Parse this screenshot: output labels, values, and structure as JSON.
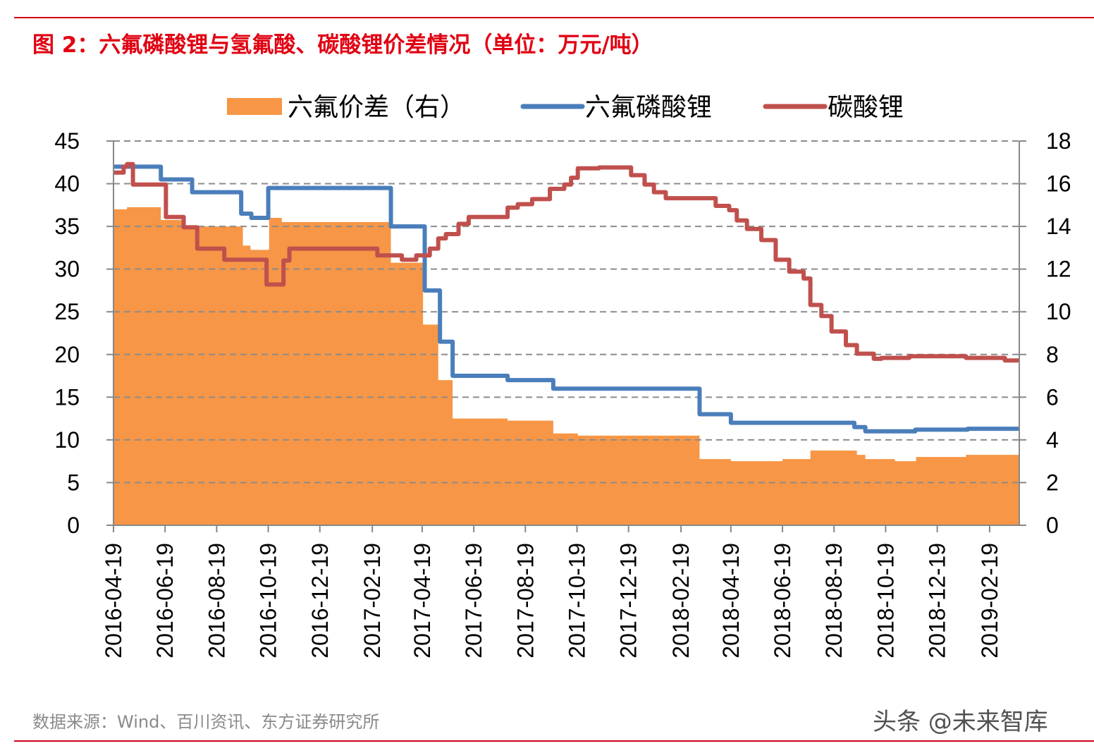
{
  "title": "图 2：六氟磷酸锂与氢氟酸、碳酸锂价差情况（单位：万元/吨）",
  "source": "数据来源：Wind、百川资讯、东方证券研究所",
  "watermark": "头条 @未来智库",
  "chart_data": {
    "type": "area+line",
    "title": "",
    "xlabel": "",
    "ylabel": "",
    "x_type": "date",
    "xlim": [
      "2016-04-19",
      "2019-03-26"
    ],
    "x_ticks": [
      "2016-04-19",
      "2016-06-19",
      "2016-08-19",
      "2016-10-19",
      "2016-12-19",
      "2017-02-19",
      "2017-04-19",
      "2017-06-19",
      "2017-08-19",
      "2017-10-19",
      "2017-12-19",
      "2018-02-19",
      "2018-04-19",
      "2018-06-19",
      "2018-08-19",
      "2018-10-19",
      "2018-12-19",
      "2019-02-19"
    ],
    "y_left": {
      "lim": [
        0,
        45
      ],
      "ticks": [
        "0",
        "5",
        "10",
        "15",
        "20",
        "25",
        "30",
        "35",
        "40",
        "45"
      ]
    },
    "y_right": {
      "lim": [
        0,
        18
      ],
      "ticks": [
        "0",
        "2",
        "4",
        "6",
        "8",
        "10",
        "12",
        "14",
        "16",
        "18"
      ]
    },
    "grid": "horizontal dashed",
    "legend_position": "top",
    "series": [
      {
        "name": "六氟价差（右）",
        "type": "area",
        "axis": "right",
        "color": "#f79646",
        "points": [
          [
            "2016-04-19",
            14.8
          ],
          [
            "2016-05-05",
            14.9
          ],
          [
            "2016-06-14",
            14.3
          ],
          [
            "2016-07-12",
            14.0
          ],
          [
            "2016-09-19",
            13.1
          ],
          [
            "2016-09-28",
            12.9
          ],
          [
            "2016-10-20",
            14.4
          ],
          [
            "2016-11-04",
            14.2
          ],
          [
            "2017-03-13",
            12.3
          ],
          [
            "2017-04-20",
            9.4
          ],
          [
            "2017-05-08",
            6.8
          ],
          [
            "2017-05-25",
            5.0
          ],
          [
            "2017-07-29",
            4.9
          ],
          [
            "2017-09-21",
            4.3
          ],
          [
            "2017-10-20",
            4.2
          ],
          [
            "2018-03-13",
            3.1
          ],
          [
            "2018-04-19",
            3.0
          ],
          [
            "2018-06-19",
            3.1
          ],
          [
            "2018-07-22",
            3.5
          ],
          [
            "2018-09-15",
            3.3
          ],
          [
            "2018-09-25",
            3.1
          ],
          [
            "2018-10-30",
            3.0
          ],
          [
            "2018-11-24",
            3.2
          ],
          [
            "2019-01-22",
            3.3
          ]
        ]
      },
      {
        "name": "六氟磷酸锂",
        "type": "line",
        "axis": "left",
        "color": "#4a7ebb",
        "points": [
          [
            "2016-04-19",
            42
          ],
          [
            "2016-06-14",
            40.5
          ],
          [
            "2016-07-21",
            39
          ],
          [
            "2016-09-17",
            36.5
          ],
          [
            "2016-09-29",
            36
          ],
          [
            "2016-10-19",
            39.5
          ],
          [
            "2017-03-13",
            35
          ],
          [
            "2017-04-22",
            27.5
          ],
          [
            "2017-05-10",
            21.5
          ],
          [
            "2017-05-25",
            17.5
          ],
          [
            "2017-07-29",
            17
          ],
          [
            "2017-09-21",
            16
          ],
          [
            "2018-03-13",
            13
          ],
          [
            "2018-04-19",
            12
          ],
          [
            "2018-09-12",
            11.5
          ],
          [
            "2018-09-25",
            11
          ],
          [
            "2018-11-23",
            11.2
          ],
          [
            "2019-01-24",
            11.3
          ]
        ]
      },
      {
        "name": "碳酸锂",
        "type": "line",
        "axis": "left",
        "color": "#c0504d",
        "points": [
          [
            "2016-04-19",
            41.3
          ],
          [
            "2016-05-01",
            42
          ],
          [
            "2016-05-05",
            42.3
          ],
          [
            "2016-05-12",
            39.9
          ],
          [
            "2016-06-20",
            36.1
          ],
          [
            "2016-07-11",
            34.9
          ],
          [
            "2016-07-27",
            32.4
          ],
          [
            "2016-08-28",
            31.1
          ],
          [
            "2016-10-17",
            28.2
          ],
          [
            "2016-11-06",
            31
          ],
          [
            "2016-11-13",
            32.4
          ],
          [
            "2017-02-25",
            31.6
          ],
          [
            "2017-03-26",
            31.1
          ],
          [
            "2017-04-12",
            31.6
          ],
          [
            "2017-04-28",
            32.4
          ],
          [
            "2017-05-08",
            33.6
          ],
          [
            "2017-05-17",
            34.1
          ],
          [
            "2017-06-01",
            35.3
          ],
          [
            "2017-06-13",
            36.1
          ],
          [
            "2017-07-29",
            37.2
          ],
          [
            "2017-08-10",
            37.6
          ],
          [
            "2017-08-27",
            38.2
          ],
          [
            "2017-09-17",
            39.4
          ],
          [
            "2017-10-04",
            39.9
          ],
          [
            "2017-10-12",
            40.7
          ],
          [
            "2017-10-20",
            41.8
          ],
          [
            "2017-11-14",
            41.9
          ],
          [
            "2017-12-22",
            41.0
          ],
          [
            "2018-01-07",
            39.9
          ],
          [
            "2018-01-18",
            39.0
          ],
          [
            "2018-02-01",
            38.3
          ],
          [
            "2018-04-01",
            37.4
          ],
          [
            "2018-04-17",
            36.9
          ],
          [
            "2018-04-26",
            35.7
          ],
          [
            "2018-05-08",
            34.7
          ],
          [
            "2018-05-25",
            33.4
          ],
          [
            "2018-06-11",
            31.1
          ],
          [
            "2018-06-27",
            29.7
          ],
          [
            "2018-07-14",
            28.9
          ],
          [
            "2018-07-22",
            25.8
          ],
          [
            "2018-08-04",
            24.5
          ],
          [
            "2018-08-16",
            22.7
          ],
          [
            "2018-09-02",
            21.1
          ],
          [
            "2018-09-15",
            20.1
          ],
          [
            "2018-10-05",
            19.5
          ],
          [
            "2018-10-14",
            19.6
          ],
          [
            "2018-11-16",
            19.8
          ],
          [
            "2019-01-22",
            19.6
          ],
          [
            "2019-03-09",
            19.3
          ]
        ]
      }
    ]
  }
}
